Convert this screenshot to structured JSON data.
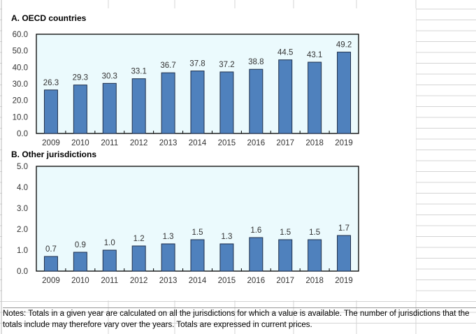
{
  "chart_data": [
    {
      "type": "bar",
      "title": "A. OECD countries",
      "categories": [
        "2009",
        "2010",
        "2011",
        "2012",
        "2013",
        "2014",
        "2015",
        "2016",
        "2017",
        "2018",
        "2019"
      ],
      "values": [
        26.3,
        29.3,
        30.3,
        33.1,
        36.7,
        37.8,
        37.2,
        38.8,
        44.5,
        43.1,
        49.2
      ],
      "ylim": [
        0,
        60
      ],
      "yticks": [
        "0.0",
        "10.0",
        "20.0",
        "30.0",
        "40.0",
        "50.0",
        "60.0"
      ],
      "labels_decimals": 1,
      "bar_color": "#4F81BD",
      "plot_bg": "#EBFAFD"
    },
    {
      "type": "bar",
      "title": "B. Other jurisdictions",
      "categories": [
        "2009",
        "2010",
        "2011",
        "2012",
        "2013",
        "2014",
        "2015",
        "2016",
        "2017",
        "2018",
        "2019"
      ],
      "values": [
        0.7,
        0.9,
        1.0,
        1.2,
        1.3,
        1.5,
        1.3,
        1.6,
        1.5,
        1.5,
        1.7
      ],
      "ylim": [
        0,
        5
      ],
      "yticks": [
        "0.0",
        "1.0",
        "2.0",
        "3.0",
        "4.0",
        "5.0"
      ],
      "labels_decimals": 1,
      "bar_color": "#4F81BD",
      "plot_bg": "#EBFAFD"
    }
  ],
  "notes": "Notes: Totals in a given year are calculated on all the jurisdictions for which a value is available. The number of jurisdictions that the totals include may therefore vary over the years. Totals are expressed in current prices."
}
